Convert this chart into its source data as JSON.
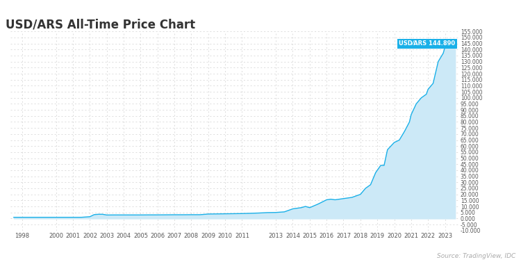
{
  "title": "USD/ARS All-Time Price Chart",
  "source": "Source: TradingView, IDC",
  "label": "USD⁄ARS 144.890",
  "label_color": "#1ab0e8",
  "line_color": "#1ab0e8",
  "fill_color": "#cce9f7",
  "background_color": "#ffffff",
  "grid_color": "#cccccc",
  "ylim": [
    -10000,
    155000
  ],
  "yticks": [
    -10000,
    -5000,
    0,
    5000,
    10000,
    15000,
    20000,
    25000,
    30000,
    35000,
    40000,
    45000,
    50000,
    55000,
    60000,
    65000,
    70000,
    75000,
    80000,
    85000,
    90000,
    95000,
    100000,
    105000,
    110000,
    115000,
    120000,
    125000,
    130000,
    135000,
    140000,
    145000,
    150000,
    155000
  ],
  "ytick_labels": [
    "-10.000",
    "-5.000",
    "0.000",
    "5.000",
    "10.000",
    "15.000",
    "20.000",
    "25.000",
    "30.000",
    "35.000",
    "40.000",
    "45.000",
    "50.000",
    "55.000",
    "60.000",
    "65.000",
    "70.000",
    "75.000",
    "80.000",
    "85.000",
    "90.000",
    "95.000",
    "100.000",
    "105.000",
    "110.000",
    "115.000",
    "120.000",
    "125.000",
    "130.000",
    "135.000",
    "140.000",
    "145.000",
    "150.000",
    "155.000"
  ],
  "xtick_years": [
    1998,
    2000,
    2001,
    2002,
    2003,
    2004,
    2005,
    2006,
    2007,
    2008,
    2009,
    2010,
    2011,
    2013,
    2014,
    2015,
    2016,
    2017,
    2018,
    2019,
    2020,
    2021,
    2022,
    2023
  ],
  "data_x": [
    1997.5,
    1998.0,
    1998.5,
    1999.0,
    1999.5,
    2000.0,
    2000.5,
    2001.0,
    2001.5,
    2002.0,
    2002.25,
    2002.5,
    2002.75,
    2003.0,
    2003.5,
    2004.0,
    2004.5,
    2005.0,
    2005.5,
    2006.0,
    2006.5,
    2007.0,
    2007.5,
    2008.0,
    2008.5,
    2009.0,
    2009.5,
    2010.0,
    2010.5,
    2011.0,
    2011.5,
    2012.0,
    2012.5,
    2013.0,
    2013.5,
    2014.0,
    2014.25,
    2014.5,
    2014.75,
    2015.0,
    2015.5,
    2016.0,
    2016.25,
    2016.5,
    2017.0,
    2017.5,
    2018.0,
    2018.3,
    2018.6,
    2018.9,
    2019.0,
    2019.2,
    2019.4,
    2019.6,
    2019.8,
    2020.0,
    2020.3,
    2020.6,
    2020.9,
    2021.0,
    2021.3,
    2021.6,
    2021.9,
    2022.0,
    2022.3,
    2022.6,
    2022.9,
    2023.0,
    2023.3,
    2023.6
  ],
  "data_y": [
    1000,
    1000,
    1000,
    1000,
    1000,
    1000,
    1000,
    1000,
    1000,
    1500,
    3200,
    3500,
    3500,
    2900,
    2950,
    2950,
    2950,
    2950,
    3000,
    3000,
    3050,
    3100,
    3100,
    3150,
    3150,
    3700,
    3800,
    3900,
    4000,
    4100,
    4300,
    4550,
    4900,
    5000,
    5500,
    8000,
    8500,
    9000,
    10000,
    9000,
    12000,
    15500,
    16000,
    15500,
    16500,
    17500,
    20000,
    25000,
    28000,
    38000,
    40000,
    44000,
    44000,
    57000,
    60000,
    63000,
    65000,
    72000,
    80000,
    86000,
    95000,
    100000,
    103000,
    107000,
    112000,
    130000,
    137000,
    142000,
    144890,
    144890
  ],
  "xlim": [
    1997.3,
    2023.8
  ],
  "final_x": 2023.6,
  "final_y": 144890
}
